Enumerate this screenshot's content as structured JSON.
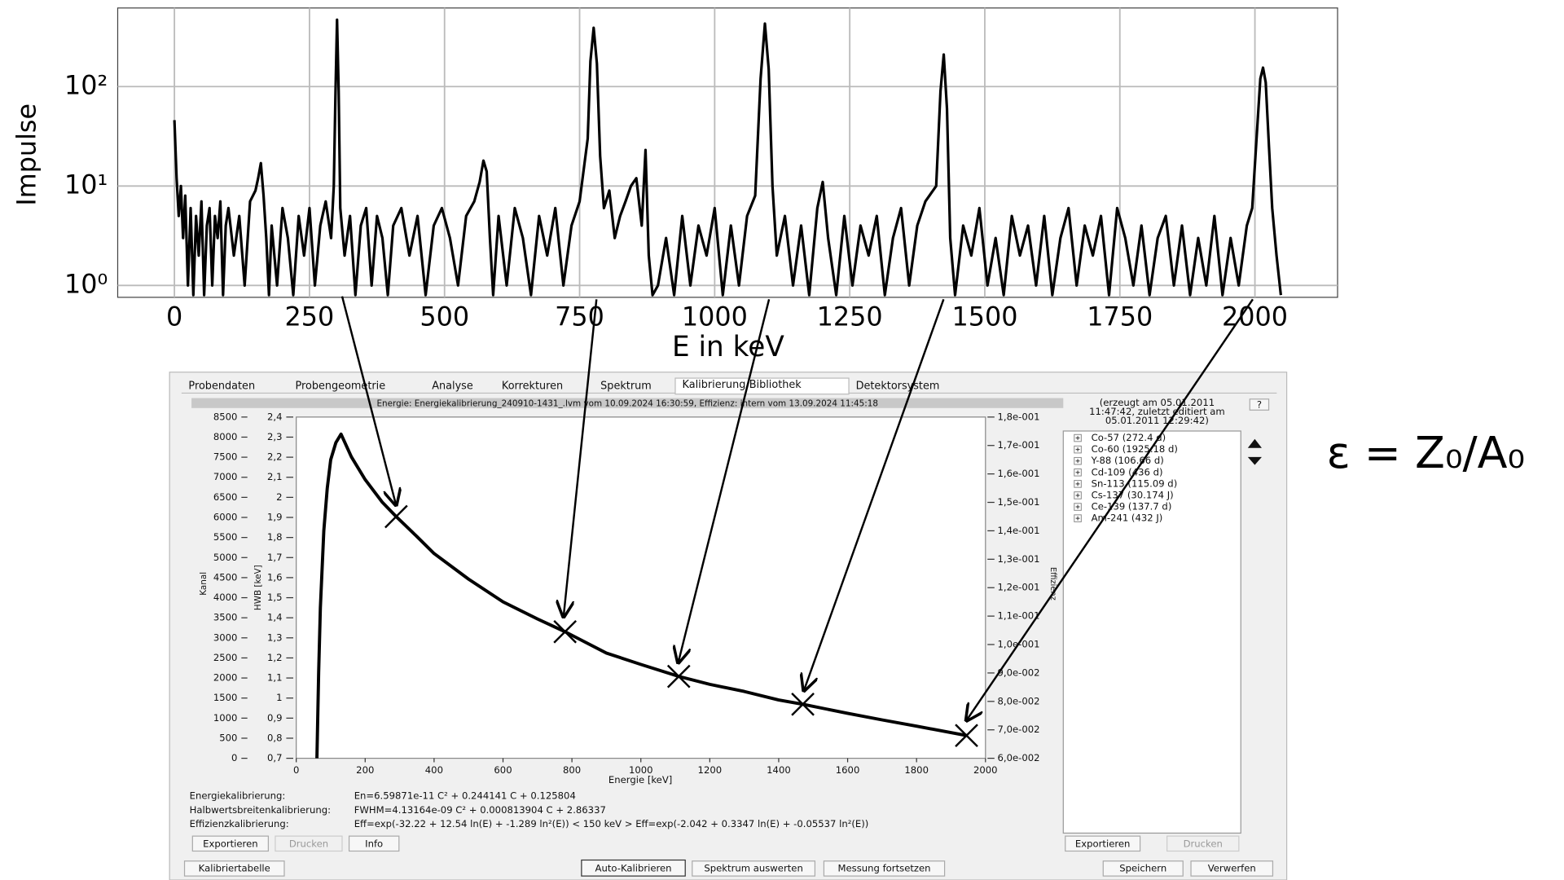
{
  "chart_data": [
    {
      "type": "line",
      "xlabel": "E in keV",
      "ylabel": "Impulse",
      "log_y": true,
      "grid": true,
      "color": "#000000",
      "xlim": [
        -105,
        2153
      ],
      "xticks": [
        0,
        250,
        500,
        750,
        1000,
        1250,
        1500,
        1750,
        2000
      ],
      "ylim": [
        0.76,
        617
      ],
      "yticks": [
        {
          "value": 1,
          "label": "10⁰"
        },
        {
          "value": 10,
          "label": "10¹"
        },
        {
          "value": 100,
          "label": "10²"
        }
      ],
      "series": [
        {
          "color": "#000000",
          "x": [
            0,
            4,
            8,
            12,
            16,
            20,
            25,
            30,
            35,
            40,
            45,
            50,
            55,
            60,
            65,
            70,
            75,
            80,
            85,
            90,
            95,
            100,
            110,
            120,
            130,
            140,
            150,
            155,
            160,
            165,
            170,
            175,
            180,
            190,
            200,
            210,
            220,
            230,
            240,
            250,
            260,
            270,
            280,
            290,
            295,
            298,
            301,
            304,
            307,
            315,
            325,
            335,
            345,
            355,
            365,
            375,
            385,
            395,
            405,
            420,
            435,
            450,
            465,
            480,
            495,
            510,
            525,
            540,
            555,
            565,
            572,
            578,
            584,
            590,
            600,
            615,
            630,
            645,
            660,
            675,
            690,
            705,
            720,
            735,
            750,
            765,
            770,
            776,
            782,
            788,
            795,
            805,
            815,
            825,
            835,
            845,
            855,
            865,
            872,
            878,
            885,
            895,
            910,
            925,
            940,
            955,
            970,
            985,
            1000,
            1015,
            1030,
            1045,
            1060,
            1075,
            1085,
            1093,
            1100,
            1107,
            1115,
            1130,
            1145,
            1160,
            1175,
            1190,
            1200,
            1210,
            1225,
            1240,
            1255,
            1270,
            1285,
            1300,
            1315,
            1330,
            1345,
            1360,
            1375,
            1390,
            1410,
            1418,
            1424,
            1430,
            1436,
            1445,
            1460,
            1475,
            1490,
            1505,
            1520,
            1535,
            1550,
            1565,
            1580,
            1595,
            1610,
            1625,
            1640,
            1655,
            1670,
            1685,
            1700,
            1715,
            1730,
            1745,
            1760,
            1775,
            1790,
            1805,
            1820,
            1835,
            1850,
            1865,
            1880,
            1895,
            1910,
            1925,
            1940,
            1955,
            1970,
            1985,
            1995,
            2003,
            2010,
            2015,
            2020,
            2026,
            2032,
            2040,
            2048
          ],
          "values": [
            46,
            12,
            5,
            10,
            3,
            8,
            1,
            6,
            0.8,
            5,
            2,
            7,
            0.8,
            4,
            6,
            1,
            5,
            3,
            7,
            0.8,
            4,
            6,
            2,
            5,
            1,
            7,
            9,
            12,
            17,
            8,
            3,
            0.8,
            4,
            1,
            6,
            3,
            0.8,
            5,
            2,
            6,
            1,
            4,
            7,
            3,
            10,
            80,
            470,
            90,
            6,
            2,
            5,
            0.8,
            4,
            6,
            1,
            5,
            3,
            0.8,
            4,
            6,
            2,
            5,
            0.8,
            4,
            6,
            3,
            1,
            5,
            7,
            11,
            18,
            14,
            3,
            0.8,
            5,
            1,
            6,
            3,
            0.8,
            5,
            2,
            6,
            1,
            4,
            7,
            30,
            180,
            390,
            170,
            20,
            6,
            9,
            3,
            5,
            7,
            10,
            12,
            4,
            23,
            2,
            0.8,
            1,
            3,
            0.8,
            5,
            1,
            4,
            2,
            6,
            0.8,
            4,
            1,
            5,
            8,
            120,
            430,
            150,
            10,
            2,
            5,
            1,
            4,
            0.8,
            6,
            11,
            3,
            0.8,
            5,
            1,
            4,
            2,
            5,
            0.8,
            3,
            6,
            1,
            4,
            7,
            10,
            90,
            210,
            60,
            3,
            0.8,
            4,
            2,
            6,
            1,
            3,
            0.8,
            5,
            2,
            4,
            1,
            5,
            0.8,
            3,
            6,
            1,
            4,
            2,
            5,
            0.8,
            6,
            3,
            1,
            4,
            0.8,
            3,
            5,
            1,
            4,
            0.8,
            3,
            1,
            5,
            0.8,
            3,
            1,
            4,
            6,
            30,
            120,
            155,
            110,
            25,
            6,
            2,
            0.8
          ]
        }
      ]
    },
    {
      "type": "line",
      "xlabel": "Energie [keV]",
      "ylabel": "Kanal",
      "y3label": "HWB [keV]",
      "y2label": "Effizienz",
      "xlim": [
        0,
        2000
      ],
      "xticks": [
        0,
        200,
        400,
        600,
        800,
        1000,
        1200,
        1400,
        1600,
        1800,
        2000
      ],
      "ylim": [
        0,
        8500
      ],
      "yticks": [
        0,
        500,
        1000,
        1500,
        2000,
        2500,
        3000,
        3500,
        4000,
        4500,
        5000,
        5500,
        6000,
        6500,
        7000,
        7500,
        8000,
        8500
      ],
      "y3lim": [
        0.7,
        2.4
      ],
      "y3ticks": [
        {
          "value": 0.7,
          "label": "0,7"
        },
        {
          "value": 0.8,
          "label": "0,8"
        },
        {
          "value": 0.9,
          "label": "0,9"
        },
        {
          "value": 1,
          "label": "1"
        },
        {
          "value": 1.1,
          "label": "1,1"
        },
        {
          "value": 1.2,
          "label": "1,2"
        },
        {
          "value": 1.3,
          "label": "1,3"
        },
        {
          "value": 1.4,
          "label": "1,4"
        },
        {
          "value": 1.5,
          "label": "1,5"
        },
        {
          "value": 1.6,
          "label": "1,6"
        },
        {
          "value": 1.7,
          "label": "1,7"
        },
        {
          "value": 1.8,
          "label": "1,8"
        },
        {
          "value": 1.9,
          "label": "1,9"
        },
        {
          "value": 2,
          "label": "2"
        },
        {
          "value": 2.1,
          "label": "2,1"
        },
        {
          "value": 2.2,
          "label": "2,2"
        },
        {
          "value": 2.3,
          "label": "2,3"
        },
        {
          "value": 2.4,
          "label": "2,4"
        }
      ],
      "y2lim": [
        0.06,
        0.18
      ],
      "y2ticks": [
        {
          "value": 0.06,
          "label": "6,0e-002"
        },
        {
          "value": 0.07,
          "label": "7,0e-002"
        },
        {
          "value": 0.08,
          "label": "8,0e-002"
        },
        {
          "value": 0.09,
          "label": "9,0e-002"
        },
        {
          "value": 0.1,
          "label": "1,0e-001"
        },
        {
          "value": 0.11,
          "label": "1,1e-001"
        },
        {
          "value": 0.12,
          "label": "1,2e-001"
        },
        {
          "value": 0.13,
          "label": "1,3e-001"
        },
        {
          "value": 0.14,
          "label": "1,4e-001"
        },
        {
          "value": 0.15,
          "label": "1,5e-001"
        },
        {
          "value": 0.16,
          "label": "1,6e-001"
        },
        {
          "value": 0.17,
          "label": "1,7e-001"
        },
        {
          "value": 0.18,
          "label": "1,8e-001"
        }
      ],
      "series": [
        {
          "color": "#000000",
          "axis": "y2",
          "x": [
            60,
            65,
            70,
            80,
            90,
            100,
            115,
            130,
            160,
            200,
            250,
            290,
            350,
            400,
            500,
            600,
            700,
            780,
            900,
            1000,
            1110,
            1200,
            1300,
            1400,
            1470,
            1600,
            1700,
            1800,
            1945
          ],
          "values": [
            0.06,
            0.09,
            0.113,
            0.14,
            0.155,
            0.165,
            0.171,
            0.174,
            0.166,
            0.158,
            0.15,
            0.145,
            0.138,
            0.132,
            0.123,
            0.115,
            0.109,
            0.1045,
            0.097,
            0.093,
            0.0888,
            0.086,
            0.0835,
            0.0805,
            0.079,
            0.0758,
            0.0735,
            0.0713,
            0.068
          ]
        },
        {
          "color": "#000000",
          "axis": "y2",
          "marker": "x",
          "x": [
            290,
            780,
            1110,
            1470,
            1945
          ],
          "values": [
            0.145,
            0.1045,
            0.0888,
            0.079,
            0.068
          ]
        }
      ]
    }
  ],
  "ui": {
    "tabs": [
      "Probendaten",
      "Probengeometrie",
      "Analyse",
      "Korrekturen",
      "Spektrum",
      "Kalibrierung/Bibliothek",
      "Detektorsystem"
    ],
    "info_bar": "Energie: Energiekalibrierung_240910-1431_.lvm vom 10.09.2024 16:30:59, Effizienz: intern vom 13.09.2024 11:45:18",
    "library_note": [
      "(erzeugt am 05.01.2011",
      "11:47:42, zuletzt editiert am",
      "05.01.2011 12:29:42)"
    ],
    "help": "?",
    "library": [
      "Co-57 (272.4 d)",
      "Co-60 (1925.18 d)",
      "Y-88 (106.66 d)",
      "Cd-109 (436 d)",
      "Sn-113 (115.09 d)",
      "Cs-137 (30.174 J)",
      "Ce-139 (137.7 d)",
      "Am-241 (432 J)"
    ],
    "calibration": [
      {
        "label": "Energiekalibrierung:",
        "formula": "En=6.59871e-11 C² + 0.244141 C + 0.125804"
      },
      {
        "label": "Halbwertsbreitenkalibrierung:",
        "formula": "FWHM=4.13164e-09 C² + 0.000813904 C + 2.86337"
      },
      {
        "label": "Effizienzkalibrierung:",
        "formula": "Eff=exp(-32.22 + 12.54 ln(E) + -1.289 ln²(E))  < 150 keV >  Eff=exp(-2.042 + 0.3347 ln(E) + -0.05537 ln²(E))"
      }
    ],
    "chart_buttons": [
      "Exportieren",
      "Drucken",
      "Info"
    ],
    "library_buttons": [
      "Exportieren",
      "Drucken"
    ],
    "bottom_buttons": [
      "Kalibriertabelle",
      "Auto-Kalibrieren",
      "Spektrum auswerten",
      "Messung fortsetzen",
      "Speichern",
      "Verwerfen"
    ]
  },
  "equation": "ε = Z₀/A₀"
}
